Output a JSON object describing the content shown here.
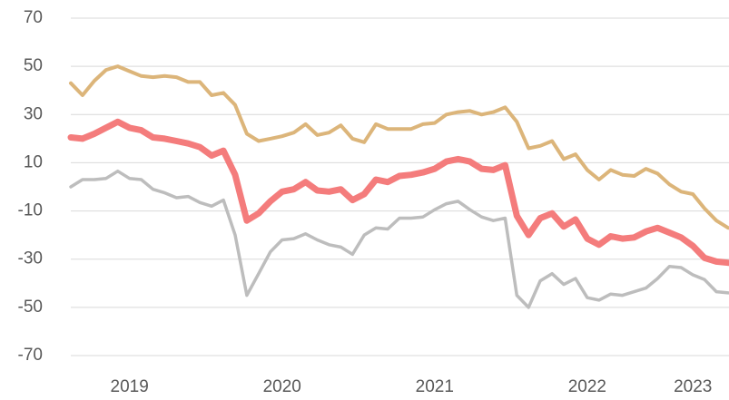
{
  "chart_data": {
    "type": "line",
    "categories": [
      null,
      null,
      null,
      null,
      null,
      "2019",
      null,
      null,
      null,
      null,
      null,
      null,
      null,
      null,
      null,
      null,
      null,
      null,
      "2020",
      null,
      null,
      null,
      null,
      null,
      null,
      null,
      null,
      null,
      null,
      null,
      null,
      "2021",
      null,
      null,
      null,
      null,
      null,
      null,
      null,
      null,
      null,
      null,
      null,
      null,
      "2022",
      null,
      null,
      null,
      null,
      null,
      null,
      null,
      null,
      "2023",
      null,
      null,
      null
    ],
    "series": [
      {
        "color": "#bdbdbd",
        "width": 3.5,
        "values": [
          0,
          3,
          3,
          3.5,
          6.5,
          3.5,
          3,
          -1,
          -2.5,
          -4.5,
          -4,
          -6.5,
          -8,
          -5.5,
          -20,
          -45,
          -36,
          -27,
          -22,
          -21.5,
          -19.5,
          -22,
          -24,
          -25,
          -28,
          -20,
          -17,
          -17.5,
          -13,
          -13,
          -12.5,
          -9.5,
          -7,
          -6,
          -9.5,
          -12.5,
          -14,
          -13,
          -45,
          -50,
          -39,
          -36,
          -40.5,
          -38,
          -46,
          -47,
          -44.5,
          -45,
          -43.5,
          -42,
          -38,
          -33,
          -33.5,
          -36.5,
          -38.5,
          -43.5,
          -44
        ]
      },
      {
        "color": "#dcb57a",
        "width": 4,
        "values": [
          43,
          38,
          44,
          48.5,
          50,
          48,
          46,
          45.5,
          46,
          45.5,
          43.5,
          43.5,
          38,
          39,
          34,
          22,
          19,
          20,
          21,
          22.5,
          26,
          21.5,
          22.5,
          25.5,
          20,
          18.5,
          26,
          24,
          24,
          24,
          26,
          26.5,
          30,
          31,
          31.5,
          30,
          31,
          33,
          27,
          16,
          17,
          19,
          11.5,
          13.5,
          7,
          3,
          7,
          5,
          4.5,
          7.5,
          5.5,
          1,
          -2,
          -3,
          -9,
          -14,
          -17
        ]
      },
      {
        "color": "#f47c7c",
        "width": 7,
        "values": [
          20.5,
          20,
          22,
          24.5,
          27,
          24.5,
          23.5,
          20.5,
          20,
          19,
          18,
          16.5,
          13,
          15,
          5,
          -14,
          -11,
          -6,
          -2,
          -1,
          2,
          -1.5,
          -2,
          -1,
          -5.5,
          -3,
          3,
          2,
          4.5,
          5,
          6,
          7.5,
          10.5,
          11.5,
          10.5,
          7.5,
          7,
          9,
          -12,
          -20,
          -13,
          -11,
          -16.5,
          -13.5,
          -21.5,
          -24,
          -20.5,
          -21.5,
          -21,
          -18.5,
          -17,
          -19,
          -21,
          -24.5,
          -29.5,
          -31,
          -31.5
        ]
      }
    ],
    "ylim": [
      -70,
      70
    ],
    "yticks": [
      -70,
      -50,
      -30,
      -10,
      10,
      30,
      50,
      70
    ],
    "grid": true
  }
}
